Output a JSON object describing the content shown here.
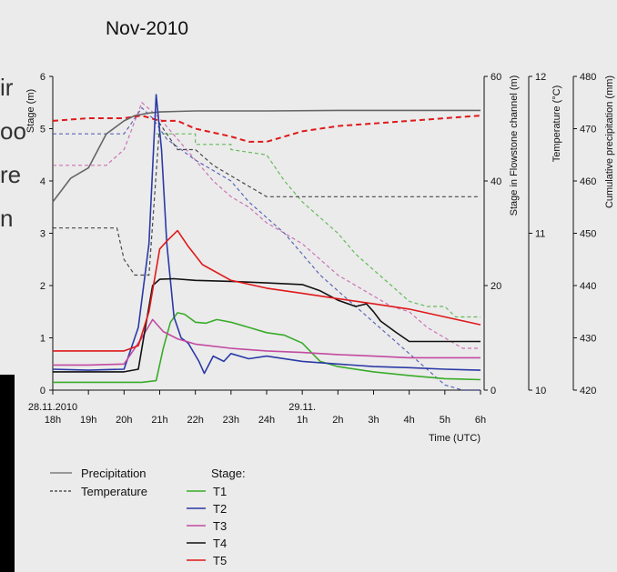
{
  "chart_data": {
    "type": "line",
    "title": "Nov-2010",
    "xlabel": "Time (UTC)",
    "x_ticks": [
      "18h",
      "19h",
      "20h",
      "21h",
      "22h",
      "23h",
      "24h",
      "1h",
      "2h",
      "3h",
      "4h",
      "5h",
      "6h"
    ],
    "x_date_labels": [
      {
        "text": "28.11.2010",
        "at": "18h"
      },
      {
        "text": "29.11.",
        "at": "1h"
      }
    ],
    "axes": {
      "stage": {
        "label": "Stage (m)",
        "ticks": [
          0,
          1,
          2,
          3,
          4,
          5,
          6
        ],
        "range": [
          0,
          6
        ]
      },
      "flowstone": {
        "label": "Stage in Flowstone channel (m)",
        "ticks": [
          0,
          20,
          40,
          60
        ],
        "range": [
          0,
          60
        ]
      },
      "temperature": {
        "label": "Temperature (°C)",
        "ticks": [
          10,
          11,
          12
        ],
        "range": [
          10,
          12
        ]
      },
      "precipitation": {
        "label": "Cumulative precipitation (mm)",
        "ticks": [
          420,
          430,
          440,
          450,
          460,
          470,
          480
        ],
        "range": [
          420,
          480
        ]
      }
    },
    "series": [
      {
        "name": "Precipitation",
        "style": "solid",
        "color": "#666666",
        "axis": "precipitation",
        "x": [
          18,
          18.5,
          19,
          19.5,
          20,
          20.3,
          20.7,
          21,
          21.5,
          22,
          24,
          26,
          27.5,
          30
        ],
        "y": [
          456,
          460.5,
          462.5,
          469,
          471.5,
          472.5,
          473,
          473.2,
          473.3,
          473.4,
          473.4,
          473.5,
          473.5,
          473.5
        ]
      },
      {
        "name": "Temperature",
        "style": "dashed",
        "axis": "temperature",
        "x": [],
        "y": []
      },
      {
        "name": "T1",
        "style": "solid",
        "color": "#3aab2a",
        "axis": "stage",
        "x": [
          18,
          19,
          20,
          20.5,
          20.9,
          21.1,
          21.3,
          21.5,
          21.7,
          22,
          22.3,
          22.6,
          23,
          23.5,
          24,
          24.5,
          25,
          25.5,
          26,
          27,
          28,
          29,
          30
        ],
        "y": [
          0.15,
          0.15,
          0.15,
          0.15,
          0.18,
          0.8,
          1.3,
          1.48,
          1.45,
          1.3,
          1.28,
          1.35,
          1.3,
          1.2,
          1.1,
          1.05,
          0.9,
          0.55,
          0.45,
          0.35,
          0.28,
          0.22,
          0.2
        ]
      },
      {
        "name": "T2",
        "style": "solid",
        "color": "#2b3aa6",
        "axis": "stage",
        "x": [
          18,
          19,
          20,
          20.4,
          20.7,
          20.9,
          21.05,
          21.2,
          21.4,
          21.6,
          21.8,
          22.1,
          22.25,
          22.5,
          22.8,
          23,
          23.5,
          24,
          25,
          26,
          27,
          28,
          29,
          30
        ],
        "y": [
          0.4,
          0.38,
          0.4,
          1.2,
          2.8,
          5.65,
          4.6,
          2.8,
          1.4,
          1.0,
          0.9,
          0.55,
          0.32,
          0.65,
          0.55,
          0.7,
          0.6,
          0.65,
          0.55,
          0.5,
          0.45,
          0.43,
          0.4,
          0.38
        ]
      },
      {
        "name": "T3",
        "style": "solid",
        "color": "#c24aa0",
        "axis": "stage",
        "x": [
          18,
          19,
          20,
          20.5,
          20.8,
          21.1,
          21.5,
          22,
          23,
          24,
          25,
          26,
          27,
          28,
          29,
          30
        ],
        "y": [
          0.48,
          0.48,
          0.5,
          1.0,
          1.35,
          1.12,
          0.98,
          0.88,
          0.8,
          0.75,
          0.72,
          0.68,
          0.65,
          0.62,
          0.62,
          0.62
        ]
      },
      {
        "name": "T4",
        "style": "solid",
        "color": "#111111",
        "axis": "stage",
        "x": [
          18,
          19,
          20,
          20.4,
          20.6,
          20.8,
          21,
          21.4,
          22,
          23,
          24,
          25,
          25.5,
          26,
          26.5,
          26.8,
          27,
          27.2,
          27.6,
          28,
          29,
          30
        ],
        "y": [
          0.35,
          0.35,
          0.35,
          0.4,
          1.2,
          2.0,
          2.12,
          2.13,
          2.1,
          2.08,
          2.05,
          2.02,
          1.9,
          1.72,
          1.6,
          1.65,
          1.5,
          1.32,
          1.12,
          0.93,
          0.93,
          0.93
        ]
      },
      {
        "name": "T5",
        "style": "solid",
        "color": "#e0191b",
        "axis": "stage",
        "x": [
          18,
          19,
          20,
          20.4,
          20.7,
          21,
          21.2,
          21.5,
          21.8,
          22.2,
          23,
          24,
          25,
          26,
          27,
          28,
          29,
          30
        ],
        "y": [
          0.75,
          0.75,
          0.75,
          0.85,
          1.5,
          2.7,
          2.85,
          3.05,
          2.75,
          2.4,
          2.1,
          1.95,
          1.85,
          1.75,
          1.65,
          1.55,
          1.4,
          1.25
        ]
      }
    ],
    "grid": false,
    "legend_position": "bottom-left",
    "legend": {
      "lines": [
        {
          "label": "Precipitation",
          "style": "solid"
        },
        {
          "label": "Temperature",
          "style": "dashed"
        }
      ],
      "stage_title": "Stage:",
      "stage": [
        "T1",
        "T2",
        "T3",
        "T4",
        "T5"
      ]
    }
  },
  "background_text": [
    "ir",
    "oo",
    "re",
    "n"
  ]
}
